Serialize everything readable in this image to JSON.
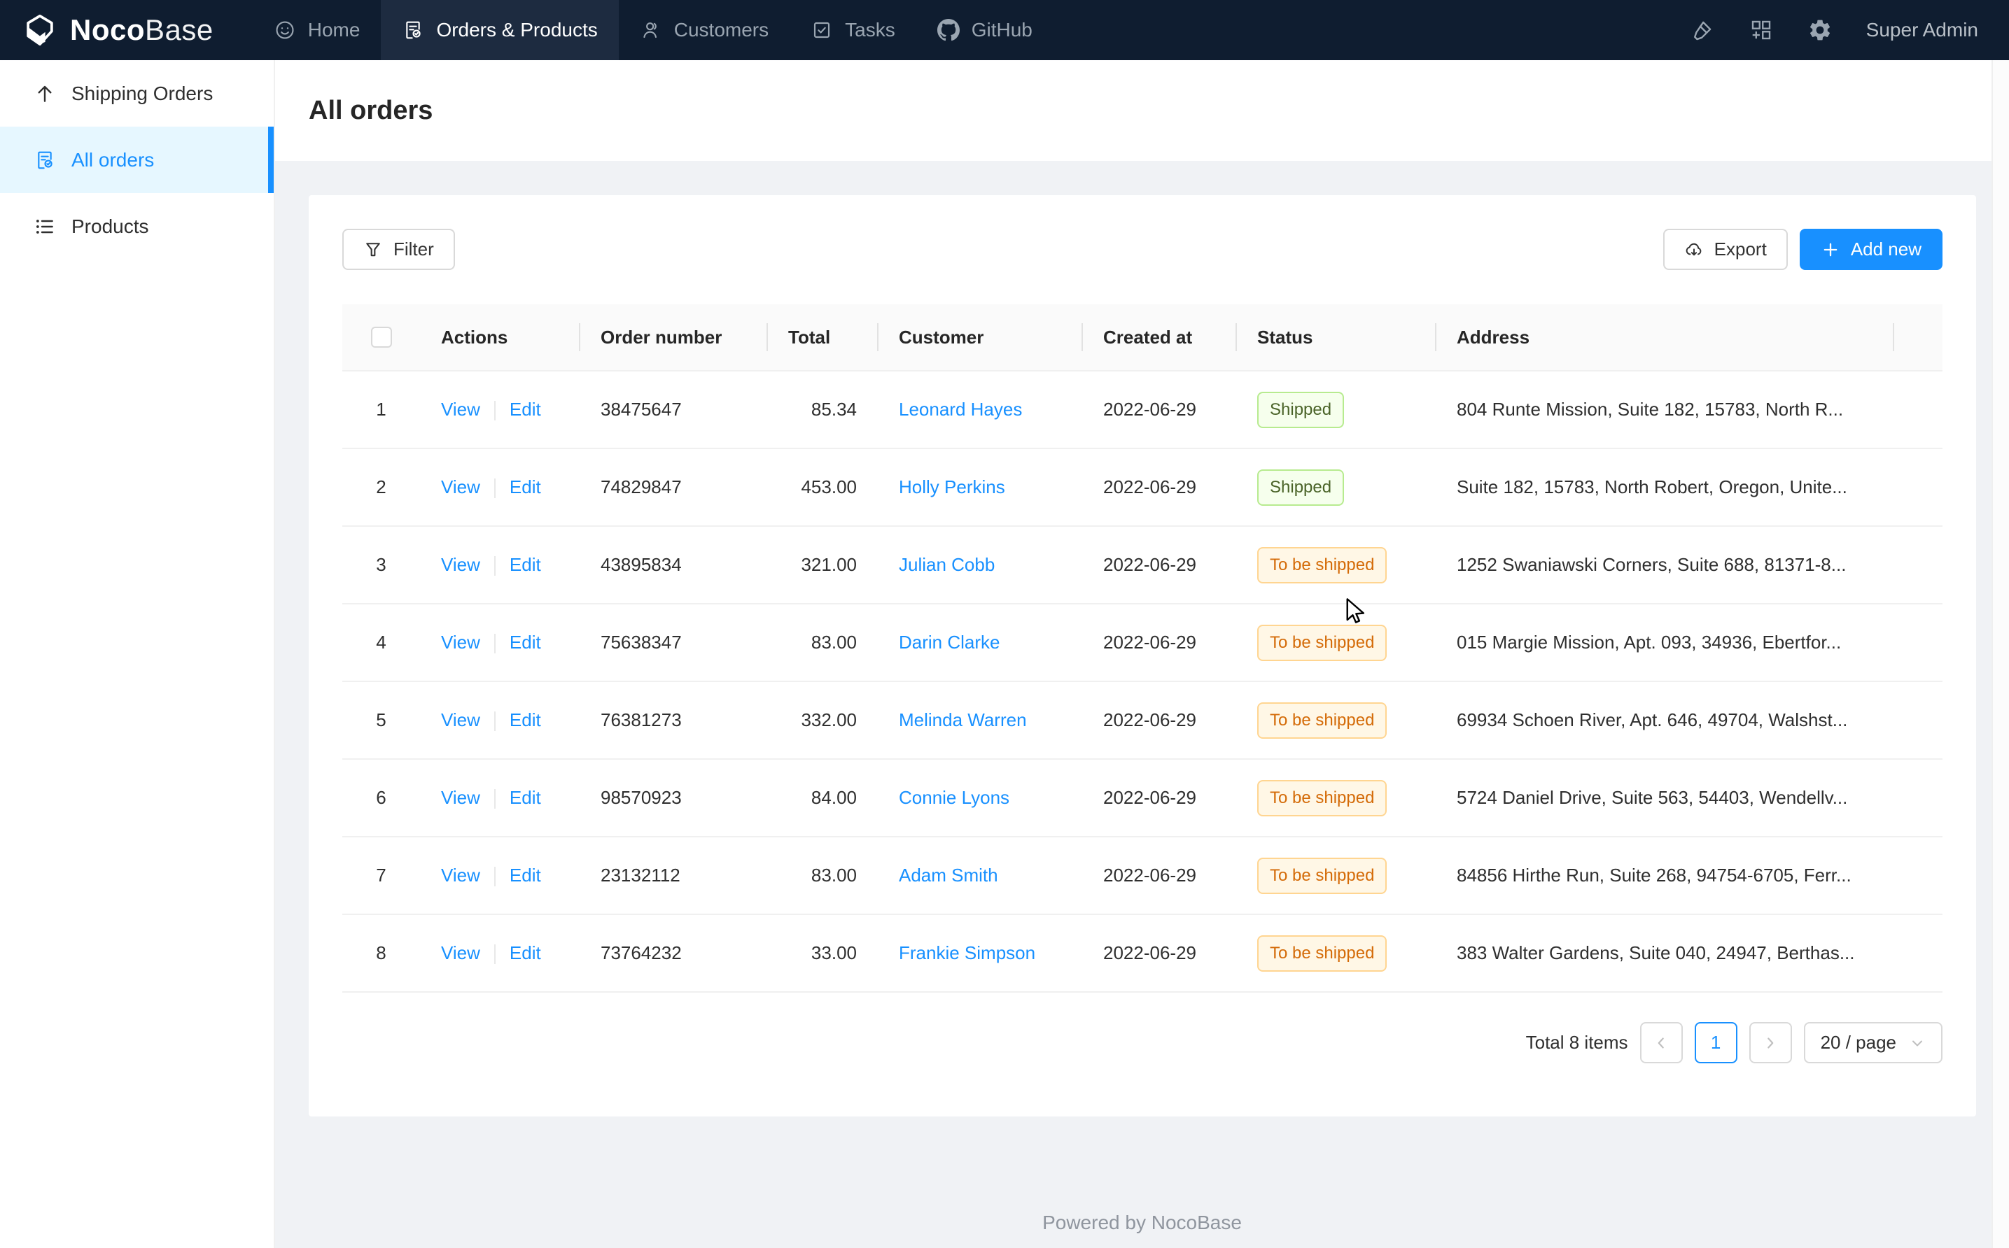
{
  "navbar": {
    "logo": {
      "noco": "Noco",
      "base": "Base"
    },
    "tabs": [
      {
        "label": "Home",
        "icon": "smiley"
      },
      {
        "label": "Orders & Products",
        "icon": "order-doc"
      },
      {
        "label": "Customers",
        "icon": "person"
      },
      {
        "label": "Tasks",
        "icon": "task-check"
      },
      {
        "label": "GitHub",
        "icon": "github"
      }
    ],
    "user": "Super Admin"
  },
  "sidebar": {
    "items": [
      {
        "label": "Shipping Orders",
        "icon": "arrow-up"
      },
      {
        "label": "All orders",
        "icon": "order-doc"
      },
      {
        "label": "Products",
        "icon": "list"
      }
    ]
  },
  "page": {
    "title": "All orders"
  },
  "toolbar": {
    "filter": "Filter",
    "export": "Export",
    "add_new": "Add new"
  },
  "table": {
    "columns": [
      "",
      "Actions",
      "Order number",
      "Total",
      "Customer",
      "Created at",
      "Status",
      "Address"
    ],
    "action_labels": {
      "view": "View",
      "edit": "Edit"
    },
    "rows": [
      {
        "index": "1",
        "order_number": "38475647",
        "total": "85.34",
        "customer": "Leonard Hayes",
        "created_at": "2022-06-29",
        "status": "Shipped",
        "status_type": "green",
        "address": "804 Runte Mission, Suite 182, 15783, North R..."
      },
      {
        "index": "2",
        "order_number": "74829847",
        "total": "453.00",
        "customer": "Holly Perkins",
        "created_at": "2022-06-29",
        "status": "Shipped",
        "status_type": "green",
        "address": "Suite 182, 15783, North Robert, Oregon, Unite..."
      },
      {
        "index": "3",
        "order_number": "43895834",
        "total": "321.00",
        "customer": "Julian Cobb",
        "created_at": "2022-06-29",
        "status": "To be shipped",
        "status_type": "orange",
        "address": "1252 Swaniawski Corners, Suite 688, 81371-8..."
      },
      {
        "index": "4",
        "order_number": "75638347",
        "total": "83.00",
        "customer": "Darin Clarke",
        "created_at": "2022-06-29",
        "status": "To be shipped",
        "status_type": "orange",
        "address": "015 Margie Mission, Apt. 093, 34936, Ebertfor..."
      },
      {
        "index": "5",
        "order_number": "76381273",
        "total": "332.00",
        "customer": "Melinda Warren",
        "created_at": "2022-06-29",
        "status": "To be shipped",
        "status_type": "orange",
        "address": "69934 Schoen River, Apt. 646, 49704, Walshst..."
      },
      {
        "index": "6",
        "order_number": "98570923",
        "total": "84.00",
        "customer": "Connie Lyons",
        "created_at": "2022-06-29",
        "status": "To be shipped",
        "status_type": "orange",
        "address": "5724 Daniel Drive, Suite 563, 54403, Wendellv..."
      },
      {
        "index": "7",
        "order_number": "23132112",
        "total": "83.00",
        "customer": "Adam Smith",
        "created_at": "2022-06-29",
        "status": "To be shipped",
        "status_type": "orange",
        "address": "84856 Hirthe Run, Suite 268, 94754-6705, Ferr..."
      },
      {
        "index": "8",
        "order_number": "73764232",
        "total": "33.00",
        "customer": "Frankie Simpson",
        "created_at": "2022-06-29",
        "status": "To be shipped",
        "status_type": "orange",
        "address": "383 Walter Gardens, Suite 040, 24947, Berthas..."
      }
    ]
  },
  "pagination": {
    "total_text": "Total 8 items",
    "current_page": "1",
    "page_size": "20 / page"
  },
  "footer": {
    "text": "Powered by NocoBase"
  },
  "colors": {
    "accent": "#1890ff",
    "navbar_bg": "#0f1d30",
    "sidebar_active_bg": "#e6f7ff",
    "badge_green_bg": "#f6ffed",
    "badge_green_border": "#b7eb8f",
    "badge_orange_bg": "#fff7e6",
    "badge_orange_border": "#ffd591",
    "badge_orange_text": "#d46b08"
  }
}
